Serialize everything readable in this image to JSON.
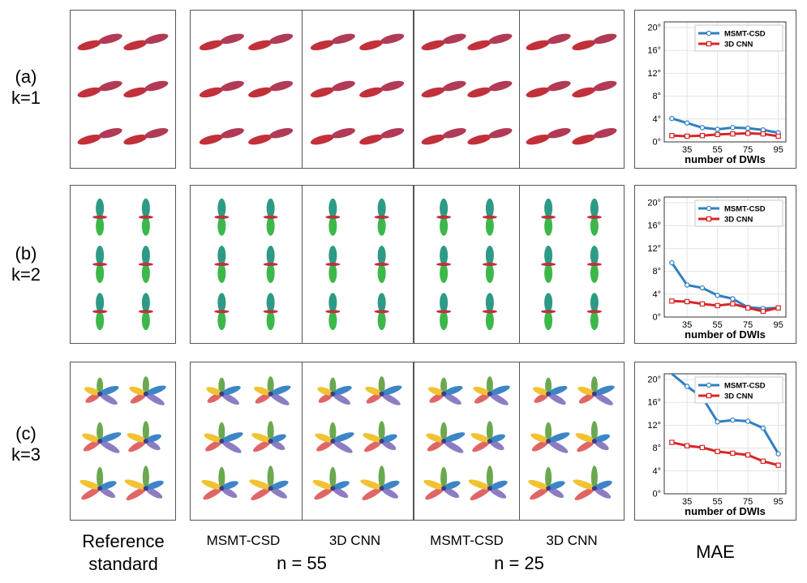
{
  "row_labels": [
    {
      "id": "(a)",
      "k": "k=1"
    },
    {
      "id": "(b)",
      "k": "k=2"
    },
    {
      "id": "(c)",
      "k": "k=3"
    }
  ],
  "captions": {
    "reference_line1": "Reference",
    "reference_line2": "standard",
    "group1_method1": "MSMT-CSD",
    "group1_method2": "3D CNN",
    "group1_n": "n = 55",
    "group2_method1": "MSMT-CSD",
    "group2_method2": "3D CNN",
    "group2_n": "n = 25",
    "metric": "MAE"
  },
  "colors": {
    "msmt": "#2f7fc1",
    "cnn": "#d62728",
    "k1_lobe": "#c2303a",
    "k2_lobe": "#3cb84a"
  },
  "chart_data": [
    {
      "type": "line",
      "xlabel": "number of DWIs",
      "ylabel": "",
      "x": [
        25,
        35,
        45,
        55,
        65,
        75,
        85,
        95
      ],
      "xticks": [
        35,
        55,
        75,
        95
      ],
      "yticks": [
        "0°",
        "4°",
        "8°",
        "12°",
        "16°",
        "20°"
      ],
      "ylim": [
        0,
        21
      ],
      "legend_position": "top-right",
      "grid": true,
      "series": [
        {
          "name": "MSMT-CSD",
          "values": [
            4.1,
            3.3,
            2.5,
            2.2,
            2.5,
            2.4,
            2.1,
            1.6
          ]
        },
        {
          "name": "3D CNN",
          "values": [
            1.1,
            1.0,
            1.1,
            1.3,
            1.4,
            1.5,
            1.4,
            1.0
          ]
        }
      ]
    },
    {
      "type": "line",
      "xlabel": "number of DWIs",
      "ylabel": "",
      "x": [
        25,
        35,
        45,
        55,
        65,
        75,
        85,
        95
      ],
      "xticks": [
        35,
        55,
        75,
        95
      ],
      "yticks": [
        "0°",
        "4°",
        "8°",
        "12°",
        "16°",
        "20°"
      ],
      "ylim": [
        0,
        21
      ],
      "legend_position": "top-right",
      "grid": true,
      "series": [
        {
          "name": "MSMT-CSD",
          "values": [
            9.5,
            5.6,
            5.1,
            3.8,
            3.2,
            1.7,
            1.5,
            1.6
          ]
        },
        {
          "name": "3D CNN",
          "values": [
            2.8,
            2.7,
            2.3,
            2.0,
            2.3,
            1.6,
            1.0,
            1.6
          ]
        }
      ]
    },
    {
      "type": "line",
      "xlabel": "number of DWIs",
      "ylabel": "",
      "x": [
        25,
        35,
        45,
        55,
        65,
        75,
        85,
        95
      ],
      "xticks": [
        35,
        55,
        75,
        95
      ],
      "yticks": [
        "0°",
        "4°",
        "8°",
        "12°",
        "16°",
        "20°"
      ],
      "ylim": [
        0,
        21
      ],
      "legend_position": "top-right",
      "grid": true,
      "series": [
        {
          "name": "MSMT-CSD",
          "values": [
            22.5,
            18.8,
            16.9,
            12.6,
            12.9,
            12.7,
            11.5,
            7.0
          ]
        },
        {
          "name": "3D CNN",
          "values": [
            9.0,
            8.4,
            8.1,
            7.4,
            7.1,
            6.8,
            5.7,
            5.0
          ]
        }
      ]
    }
  ]
}
